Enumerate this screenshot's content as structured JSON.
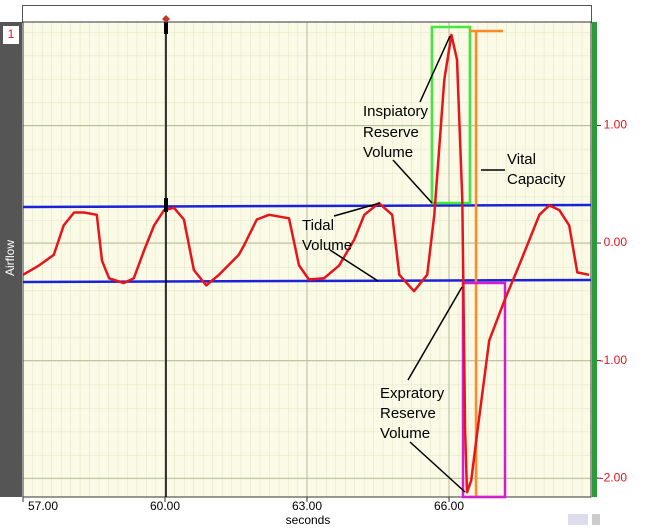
{
  "chart_data": {
    "type": "line",
    "channel_number": "1",
    "x_label": "seconds",
    "x": [
      57.0,
      57.34,
      57.65,
      57.86,
      58.08,
      58.29,
      58.56,
      58.67,
      58.82,
      59.13,
      59.34,
      59.56,
      59.77,
      59.98,
      60.19,
      60.4,
      60.61,
      60.87,
      61.14,
      61.56,
      61.67,
      61.94,
      62.2,
      62.62,
      62.83,
      63.04,
      63.36,
      63.68,
      64.0,
      64.21,
      64.52,
      64.8,
      64.95,
      65.26,
      65.54,
      65.69,
      65.9,
      66.05,
      66.17,
      66.28,
      66.34,
      66.38,
      66.47,
      66.6,
      66.85,
      67.17,
      67.48,
      67.7,
      67.91,
      68.12,
      68.33,
      68.54,
      68.71,
      68.96
    ],
    "series": [
      {
        "name": "Airflow",
        "color": "#e8141c",
        "values": [
          -0.27,
          -0.19,
          -0.1,
          0.15,
          0.26,
          0.26,
          0.24,
          -0.15,
          -0.3,
          -0.34,
          -0.3,
          -0.06,
          0.15,
          0.28,
          0.3,
          0.2,
          -0.23,
          -0.36,
          -0.27,
          -0.1,
          -0.02,
          0.2,
          0.24,
          0.21,
          -0.19,
          -0.31,
          -0.3,
          -0.19,
          0.03,
          0.24,
          0.34,
          0.24,
          -0.27,
          -0.41,
          -0.27,
          0.24,
          1.39,
          1.77,
          1.56,
          0.37,
          -1.59,
          -2.12,
          -2.02,
          -1.6,
          -0.83,
          -0.49,
          -0.19,
          0.03,
          0.24,
          0.32,
          0.28,
          0.15,
          -0.25,
          -0.27
        ]
      }
    ],
    "xlim": [
      57,
      69
    ],
    "xticks": [
      {
        "value": 57,
        "label": "57.00"
      },
      {
        "value": 60,
        "label": "60.00"
      },
      {
        "value": 63,
        "label": "63.00"
      },
      {
        "value": 66,
        "label": "66.00"
      }
    ],
    "ylim": [
      -2.16,
      1.88
    ],
    "yticks": [
      {
        "value": 1,
        "label": "1.00"
      },
      {
        "value": 0,
        "label": "0.00"
      },
      {
        "value": -1,
        "label": "-1.00"
      },
      {
        "value": -2,
        "label": "-2.00"
      }
    ],
    "grid": true,
    "annotations": [
      [
        "Inspiatory",
        "Reserve",
        "Volume"
      ],
      [
        "Vital",
        "Capacity"
      ],
      [
        "Tidal",
        "Volume"
      ],
      [
        "Expratory",
        "Reserve",
        "Volume"
      ]
    ]
  }
}
